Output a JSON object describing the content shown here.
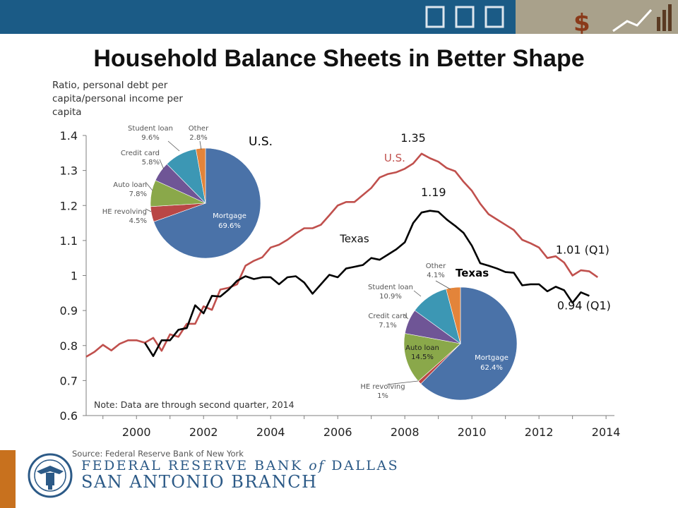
{
  "title": "Household Balance Sheets in Better Shape",
  "y_axis_title": "Ratio, personal debt per capita/personal income per capita",
  "note": "Note: Data are through second quarter, 2014",
  "source": "Source: Federal Reserve Bank of New York",
  "bank": {
    "line1": "FEDERAL RESERVE BANK",
    "of": "of",
    "line1b": "DALLAS",
    "line2": "SAN ANTONIO BRANCH"
  },
  "chart_data": [
    {
      "type": "line",
      "x_ticks": [
        "2000",
        "2002",
        "2004",
        "2006",
        "2008",
        "2010",
        "2012",
        "2014"
      ],
      "y_ticks": [
        "0.6",
        "0.7",
        "0.8",
        "0.9",
        "1",
        "1.1",
        "1.2",
        "1.3",
        "1.4"
      ],
      "ylim": [
        0.6,
        1.4
      ],
      "xlim": [
        1998.5,
        2014.25
      ],
      "grid": false,
      "series": [
        {
          "name": "U.S.",
          "color": "#c0504d",
          "x_start": 1998.5,
          "x_step": 0.25,
          "values": [
            0.768,
            0.782,
            0.802,
            0.786,
            0.805,
            0.815,
            0.815,
            0.808,
            0.822,
            0.785,
            0.832,
            0.825,
            0.862,
            0.862,
            0.912,
            0.902,
            0.96,
            0.965,
            0.975,
            1.028,
            1.042,
            1.052,
            1.08,
            1.088,
            1.102,
            1.12,
            1.135,
            1.135,
            1.145,
            1.172,
            1.2,
            1.21,
            1.21,
            1.23,
            1.25,
            1.28,
            1.29,
            1.295,
            1.305,
            1.32,
            1.348,
            1.335,
            1.325,
            1.307,
            1.298,
            1.268,
            1.242,
            1.205,
            1.175,
            1.16,
            1.145,
            1.13,
            1.102,
            1.092,
            1.08,
            1.05,
            1.055,
            1.037,
            1.0,
            1.015,
            1.012,
            0.995
          ],
          "annotations": [
            {
              "text": "1.35",
              "x": 2008.25,
              "y": 1.35
            },
            {
              "text": "1.01 (Q1)",
              "x": 2014.0,
              "y": 1.01
            }
          ]
        },
        {
          "name": "Texas",
          "color": "#000000",
          "x_start": 2000.25,
          "x_step": 0.25,
          "values": [
            0.808,
            0.77,
            0.815,
            0.815,
            0.845,
            0.85,
            0.915,
            0.892,
            0.942,
            0.94,
            0.96,
            0.985,
            0.998,
            0.99,
            0.995,
            0.995,
            0.975,
            0.995,
            0.998,
            0.98,
            0.948,
            0.975,
            1.002,
            0.995,
            1.02,
            1.025,
            1.03,
            1.05,
            1.045,
            1.06,
            1.075,
            1.095,
            1.15,
            1.18,
            1.185,
            1.182,
            1.16,
            1.142,
            1.122,
            1.085,
            1.035,
            1.028,
            1.02,
            1.01,
            1.008,
            0.972,
            0.975,
            0.975,
            0.955,
            0.968,
            0.958,
            0.922,
            0.952,
            0.942
          ],
          "annotations": [
            {
              "text": "1.19",
              "x": 2008.75,
              "y": 1.19
            },
            {
              "text": "0.94 (Q1)",
              "x": 2014.0,
              "y": 0.94
            }
          ]
        }
      ]
    },
    {
      "type": "pie",
      "title": "U.S.",
      "slices": [
        {
          "label": "Mortgage",
          "value": 69.6,
          "value_label": "69.6%",
          "color": "#4a72a8"
        },
        {
          "label": "HE revolving",
          "value": 4.5,
          "value_label": "4.5%",
          "color": "#b94746"
        },
        {
          "label": "Auto loan",
          "value": 7.8,
          "value_label": "7.8%",
          "color": "#8aa84a"
        },
        {
          "label": "Credit card",
          "value": 5.8,
          "value_label": "5.8%",
          "color": "#6f5596"
        },
        {
          "label": "Student loan",
          "value": 9.6,
          "value_label": "9.6%",
          "color": "#3c97b4"
        },
        {
          "label": "Other",
          "value": 2.8,
          "value_label": "2.8%",
          "color": "#e3843a"
        }
      ]
    },
    {
      "type": "pie",
      "title": "Texas",
      "slices": [
        {
          "label": "Mortgage",
          "value": 62.4,
          "value_label": "62.4%",
          "color": "#4a72a8"
        },
        {
          "label": "HE revolving",
          "value": 1,
          "value_label": "1%",
          "color": "#b94746"
        },
        {
          "label": "Auto loan",
          "value": 14.5,
          "value_label": "14.5%",
          "color": "#8aa84a"
        },
        {
          "label": "Credit card",
          "value": 7.1,
          "value_label": "7.1%",
          "color": "#6f5596"
        },
        {
          "label": "Student loan",
          "value": 10.9,
          "value_label": "10.9%",
          "color": "#3c97b4"
        },
        {
          "label": "Other",
          "value": 4.1,
          "value_label": "4.1%",
          "color": "#e3843a"
        }
      ]
    }
  ]
}
